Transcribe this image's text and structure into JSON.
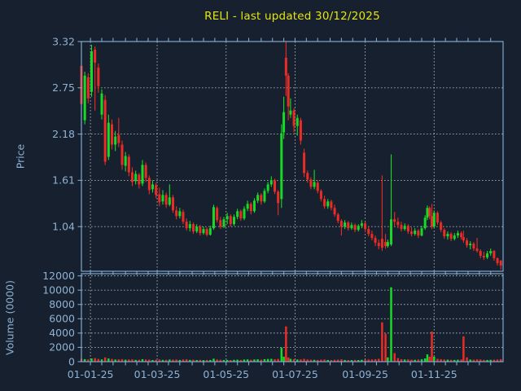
{
  "colors": {
    "background": "#16202e",
    "spine": "#7fa8cd",
    "grid": "#c6cacf",
    "tick_label": "#8fb2d4",
    "title": "#e6e411",
    "candle_up": "#19d927",
    "candle_down": "#ea2c26"
  },
  "chart_data": {
    "type": "candlestick",
    "title": "RELI - last updated 30/12/2025",
    "subplots": [
      "price_candles",
      "volume_bars"
    ],
    "x_axis": {
      "unit": "date",
      "start_date": "24-12-2024",
      "end_date": "30-12-2025",
      "range_days": [
        0,
        373
      ],
      "minor_tick_interval_days": 10,
      "ticks": [
        {
          "label": "01-01-25",
          "day": 8
        },
        {
          "label": "01-03-25",
          "day": 67
        },
        {
          "label": "01-05-25",
          "day": 128
        },
        {
          "label": "01-07-25",
          "day": 189
        },
        {
          "label": "01-09-25",
          "day": 251
        },
        {
          "label": "01-11-25",
          "day": 312
        }
      ]
    },
    "price_axis": {
      "label": "Price",
      "range": [
        0.49,
        3.32
      ],
      "grid": true,
      "ticks": [
        {
          "label": "1.04",
          "value": 1.04
        },
        {
          "label": "1.61",
          "value": 1.61
        },
        {
          "label": "2.18",
          "value": 2.18
        },
        {
          "label": "2.75",
          "value": 2.75
        },
        {
          "label": "3.32",
          "value": 3.32
        }
      ]
    },
    "volume_axis": {
      "label": "Volume (0000)",
      "range": [
        0,
        12300
      ],
      "grid": true,
      "ticks": [
        {
          "label": "0",
          "value": 0
        },
        {
          "label": "2000",
          "value": 2000
        },
        {
          "label": "4000",
          "value": 4000
        },
        {
          "label": "6000",
          "value": 6000
        },
        {
          "label": "8000",
          "value": 8000
        },
        {
          "label": "10000",
          "value": 10000
        },
        {
          "label": "12000",
          "value": 12000
        }
      ]
    },
    "candles": {
      "columns": [
        "day_offset",
        "open",
        "high",
        "low",
        "close",
        "volume_0000s"
      ],
      "up_color_rule": "close >= open",
      "rows": [
        [
          0,
          3.02,
          3.06,
          2.5,
          2.55,
          400
        ],
        [
          3,
          2.35,
          2.95,
          2.3,
          2.9,
          350
        ],
        [
          6,
          2.88,
          2.93,
          2.56,
          2.62,
          300
        ],
        [
          9,
          2.7,
          3.28,
          2.64,
          3.2,
          450
        ],
        [
          12,
          3.22,
          3.26,
          2.47,
          3.06,
          500
        ],
        [
          15,
          3.0,
          3.05,
          2.69,
          2.77,
          380
        ],
        [
          18,
          2.42,
          2.73,
          2.36,
          2.68,
          320
        ],
        [
          21,
          2.6,
          2.66,
          1.8,
          1.84,
          600
        ],
        [
          24,
          1.9,
          2.42,
          1.86,
          2.32,
          450
        ],
        [
          27,
          2.3,
          2.36,
          1.99,
          2.05,
          380
        ],
        [
          30,
          2.05,
          2.22,
          1.97,
          2.15,
          300
        ],
        [
          33,
          2.17,
          2.38,
          2.02,
          2.07,
          320
        ],
        [
          36,
          2.05,
          2.1,
          1.74,
          1.8,
          350
        ],
        [
          39,
          1.79,
          1.96,
          1.72,
          1.91,
          280
        ],
        [
          42,
          1.9,
          1.93,
          1.66,
          1.71,
          300
        ],
        [
          45,
          1.71,
          1.77,
          1.54,
          1.59,
          320
        ],
        [
          48,
          1.6,
          1.73,
          1.56,
          1.69,
          250
        ],
        [
          51,
          1.68,
          1.7,
          1.51,
          1.56,
          270
        ],
        [
          54,
          1.57,
          1.86,
          1.54,
          1.8,
          350
        ],
        [
          57,
          1.8,
          1.83,
          1.59,
          1.64,
          300
        ],
        [
          60,
          1.64,
          1.67,
          1.44,
          1.49,
          280
        ],
        [
          63,
          1.5,
          1.61,
          1.46,
          1.56,
          230
        ],
        [
          66,
          1.55,
          1.58,
          1.39,
          1.43,
          260
        ],
        [
          69,
          1.44,
          1.52,
          1.29,
          1.34,
          300
        ],
        [
          72,
          1.35,
          1.49,
          1.31,
          1.43,
          250
        ],
        [
          75,
          1.43,
          1.46,
          1.27,
          1.31,
          270
        ],
        [
          78,
          1.31,
          1.56,
          1.29,
          1.4,
          300
        ],
        [
          81,
          1.4,
          1.43,
          1.21,
          1.24,
          280
        ],
        [
          84,
          1.24,
          1.29,
          1.13,
          1.17,
          300
        ],
        [
          87,
          1.17,
          1.27,
          1.14,
          1.23,
          240
        ],
        [
          90,
          1.22,
          1.25,
          1.07,
          1.1,
          310
        ],
        [
          93,
          1.1,
          1.14,
          0.99,
          1.02,
          330
        ],
        [
          96,
          1.02,
          1.11,
          0.98,
          1.07,
          250
        ],
        [
          99,
          1.07,
          1.09,
          0.95,
          0.98,
          280
        ],
        [
          102,
          0.98,
          1.07,
          0.96,
          1.04,
          230
        ],
        [
          105,
          1.04,
          1.06,
          0.93,
          0.96,
          260
        ],
        [
          108,
          0.96,
          1.04,
          0.94,
          1.01,
          220
        ],
        [
          111,
          1.01,
          1.03,
          0.92,
          0.94,
          250
        ],
        [
          114,
          0.94,
          1.05,
          0.93,
          1.02,
          240
        ],
        [
          117,
          1.02,
          1.31,
          1.0,
          1.28,
          420
        ],
        [
          120,
          1.27,
          1.29,
          1.09,
          1.12,
          300
        ],
        [
          123,
          1.12,
          1.16,
          1.01,
          1.04,
          260
        ],
        [
          126,
          1.04,
          1.16,
          1.02,
          1.13,
          240
        ],
        [
          129,
          1.13,
          1.21,
          1.07,
          1.17,
          250
        ],
        [
          132,
          1.17,
          1.19,
          1.04,
          1.07,
          230
        ],
        [
          135,
          1.07,
          1.19,
          1.05,
          1.16,
          260
        ],
        [
          138,
          1.16,
          1.26,
          1.13,
          1.23,
          280
        ],
        [
          141,
          1.23,
          1.25,
          1.11,
          1.14,
          240
        ],
        [
          144,
          1.14,
          1.29,
          1.12,
          1.26,
          300
        ],
        [
          147,
          1.26,
          1.36,
          1.23,
          1.32,
          320
        ],
        [
          150,
          1.32,
          1.34,
          1.19,
          1.23,
          260
        ],
        [
          153,
          1.23,
          1.39,
          1.21,
          1.36,
          310
        ],
        [
          156,
          1.36,
          1.46,
          1.33,
          1.43,
          330
        ],
        [
          159,
          1.43,
          1.45,
          1.31,
          1.35,
          280
        ],
        [
          162,
          1.35,
          1.51,
          1.33,
          1.48,
          350
        ],
        [
          165,
          1.48,
          1.59,
          1.45,
          1.56,
          380
        ],
        [
          168,
          1.56,
          1.66,
          1.53,
          1.61,
          400
        ],
        [
          171,
          1.61,
          1.63,
          1.44,
          1.47,
          350
        ],
        [
          174,
          1.47,
          1.49,
          1.18,
          1.33,
          380
        ],
        [
          177,
          1.38,
          2.3,
          1.27,
          2.19,
          1970
        ],
        [
          179,
          2.2,
          2.64,
          2.12,
          2.45,
          700
        ],
        [
          181,
          3.12,
          3.32,
          2.65,
          2.9,
          4930
        ],
        [
          183,
          2.9,
          2.93,
          2.35,
          2.52,
          600
        ],
        [
          185,
          2.42,
          2.62,
          2.38,
          2.47,
          400
        ],
        [
          188,
          2.47,
          2.5,
          2.2,
          2.28,
          350
        ],
        [
          191,
          2.28,
          2.42,
          2.16,
          2.38,
          300
        ],
        [
          194,
          2.35,
          2.38,
          2.05,
          2.1,
          320
        ],
        [
          197,
          1.95,
          2.0,
          1.65,
          1.7,
          400
        ],
        [
          200,
          1.7,
          1.73,
          1.58,
          1.62,
          300
        ],
        [
          203,
          1.62,
          1.65,
          1.5,
          1.53,
          280
        ],
        [
          206,
          1.53,
          1.74,
          1.5,
          1.59,
          260
        ],
        [
          209,
          1.58,
          1.61,
          1.45,
          1.48,
          250
        ],
        [
          212,
          1.48,
          1.5,
          1.35,
          1.38,
          270
        ],
        [
          215,
          1.38,
          1.42,
          1.26,
          1.29,
          300
        ],
        [
          218,
          1.29,
          1.38,
          1.26,
          1.35,
          240
        ],
        [
          221,
          1.35,
          1.37,
          1.24,
          1.27,
          230
        ],
        [
          224,
          1.27,
          1.31,
          1.16,
          1.19,
          260
        ],
        [
          227,
          1.19,
          1.21,
          1.08,
          1.11,
          280
        ],
        [
          230,
          1.11,
          1.13,
          0.93,
          1.04,
          320
        ],
        [
          233,
          1.04,
          1.12,
          1.01,
          1.09,
          240
        ],
        [
          236,
          1.09,
          1.11,
          0.99,
          1.02,
          230
        ],
        [
          239,
          1.02,
          1.09,
          1.0,
          1.06,
          220
        ],
        [
          242,
          1.06,
          1.08,
          0.97,
          1.0,
          250
        ],
        [
          245,
          1.0,
          1.07,
          0.98,
          1.05,
          230
        ],
        [
          248,
          1.05,
          1.12,
          1.02,
          1.08,
          260
        ],
        [
          251,
          1.08,
          1.1,
          0.98,
          1.01,
          280
        ],
        [
          254,
          1.01,
          1.03,
          0.92,
          0.95,
          300
        ],
        [
          257,
          0.95,
          0.99,
          0.87,
          0.9,
          320
        ],
        [
          260,
          0.9,
          0.93,
          0.8,
          0.84,
          350
        ],
        [
          263,
          0.84,
          0.88,
          0.76,
          0.8,
          400
        ],
        [
          266,
          0.89,
          1.67,
          0.74,
          0.78,
          5500
        ],
        [
          269,
          0.85,
          0.95,
          0.77,
          0.8,
          3900
        ],
        [
          271,
          0.8,
          0.88,
          0.78,
          0.85,
          600
        ],
        [
          274,
          0.82,
          1.93,
          0.8,
          1.13,
          10400
        ],
        [
          277,
          1.13,
          1.22,
          1.05,
          1.1,
          1200
        ],
        [
          280,
          1.1,
          1.15,
          1.02,
          1.06,
          500
        ],
        [
          283,
          1.06,
          1.1,
          0.98,
          1.01,
          350
        ],
        [
          286,
          1.01,
          1.08,
          0.99,
          1.05,
          300
        ],
        [
          289,
          1.05,
          1.07,
          0.95,
          0.98,
          320
        ],
        [
          292,
          0.98,
          1.03,
          0.92,
          0.95,
          280
        ],
        [
          295,
          0.95,
          1.02,
          0.93,
          0.99,
          260
        ],
        [
          298,
          0.99,
          1.01,
          0.9,
          0.93,
          300
        ],
        [
          301,
          0.93,
          1.05,
          0.92,
          1.02,
          350
        ],
        [
          304,
          1.02,
          1.18,
          1.0,
          1.15,
          450
        ],
        [
          306,
          1.15,
          1.3,
          1.12,
          1.27,
          1020
        ],
        [
          308,
          1.27,
          1.29,
          1.13,
          1.17,
          700
        ],
        [
          310,
          1.17,
          1.32,
          1.01,
          1.04,
          4210
        ],
        [
          312,
          1.04,
          1.24,
          1.02,
          1.21,
          700
        ],
        [
          315,
          1.21,
          1.23,
          1.06,
          1.09,
          400
        ],
        [
          318,
          1.09,
          1.11,
          0.97,
          1.0,
          350
        ],
        [
          321,
          1.0,
          1.02,
          0.89,
          0.92,
          300
        ],
        [
          324,
          0.92,
          0.98,
          0.88,
          0.95,
          280
        ],
        [
          327,
          0.95,
          0.97,
          0.86,
          0.89,
          260
        ],
        [
          330,
          0.89,
          0.96,
          0.87,
          0.93,
          250
        ],
        [
          333,
          0.93,
          0.99,
          0.9,
          0.96,
          270
        ],
        [
          336,
          0.96,
          0.98,
          0.88,
          0.91,
          300
        ],
        [
          338,
          0.91,
          0.99,
          0.84,
          0.87,
          3530
        ],
        [
          341,
          0.87,
          0.9,
          0.78,
          0.81,
          600
        ],
        [
          344,
          0.81,
          0.86,
          0.76,
          0.83,
          300
        ],
        [
          347,
          0.83,
          0.85,
          0.74,
          0.77,
          280
        ],
        [
          350,
          0.77,
          0.9,
          0.72,
          0.74,
          320
        ],
        [
          353,
          0.74,
          0.76,
          0.65,
          0.68,
          300
        ],
        [
          356,
          0.68,
          0.73,
          0.63,
          0.66,
          250
        ],
        [
          359,
          0.66,
          0.74,
          0.64,
          0.71,
          240
        ],
        [
          362,
          0.71,
          0.77,
          0.68,
          0.74,
          260
        ],
        [
          365,
          0.74,
          0.75,
          0.62,
          0.65,
          280
        ],
        [
          368,
          0.65,
          0.66,
          0.56,
          0.59,
          300
        ],
        [
          371,
          0.62,
          0.63,
          0.51,
          0.56,
          350
        ]
      ]
    }
  }
}
